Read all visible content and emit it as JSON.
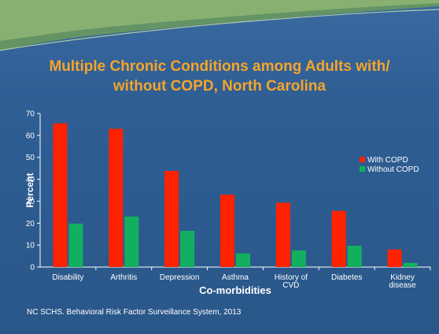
{
  "slide": {
    "title_line1": "Multiple Chronic Conditions among Adults with/",
    "title_line2": "without COPD, North Carolina",
    "source": "NC SCHS. Behavioral Risk Factor Surveillance System, 2013"
  },
  "colors": {
    "with_copd": "#ff2200",
    "without_copd": "#12b05e",
    "text": "#ffffff",
    "title": "#f6a42a"
  },
  "chart_data": {
    "type": "bar",
    "title": "",
    "xlabel": "Co-morbidities",
    "ylabel": "Percent",
    "ylim": [
      0,
      70
    ],
    "yticks": [
      0,
      10,
      20,
      30,
      40,
      50,
      60,
      70
    ],
    "grid": false,
    "legend_position": "right",
    "categories": [
      [
        "Disability"
      ],
      [
        "Arthritis"
      ],
      [
        "Depression"
      ],
      [
        "Asthma"
      ],
      [
        "History of",
        "CVD"
      ],
      [
        "Diabetes"
      ],
      [
        "Kidney",
        "disease"
      ]
    ],
    "series": [
      {
        "name": "With COPD",
        "values": [
          65.5,
          63,
          43.8,
          33,
          29.3,
          25.6,
          8
        ]
      },
      {
        "name": "Without COPD",
        "values": [
          19.8,
          23,
          16.5,
          6.2,
          7.6,
          9.7,
          1.9
        ]
      }
    ]
  }
}
